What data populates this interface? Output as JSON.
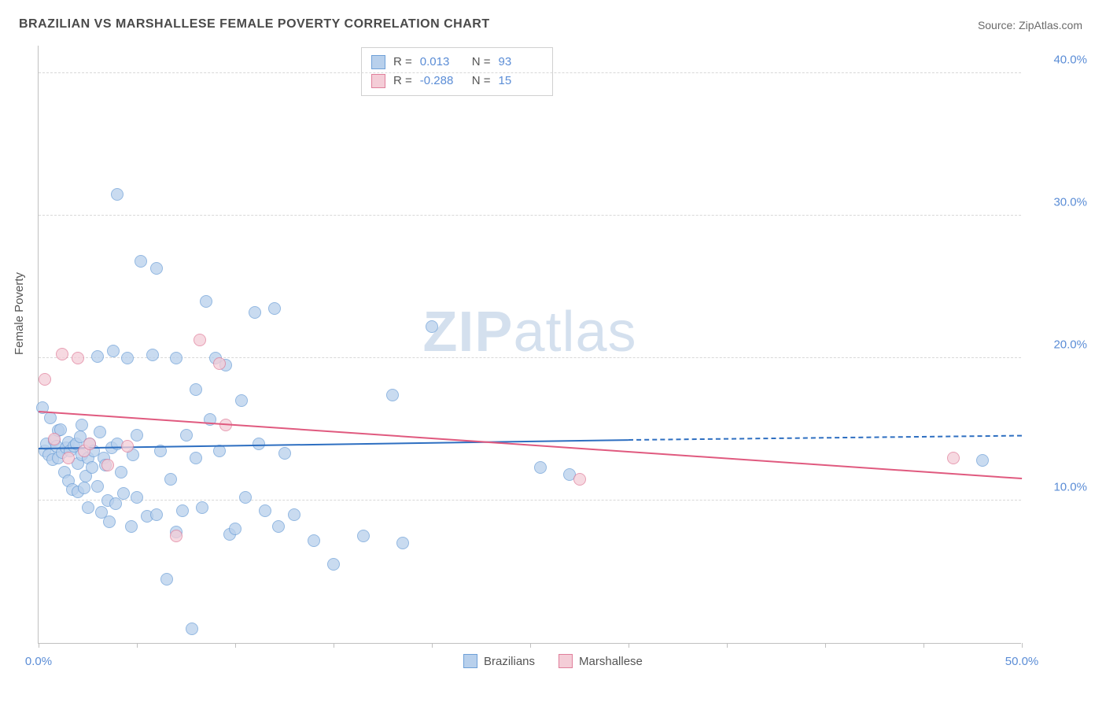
{
  "title": "BRAZILIAN VS MARSHALLESE FEMALE POVERTY CORRELATION CHART",
  "source_label": "Source: ZipAtlas.com",
  "y_axis_label": "Female Poverty",
  "watermark": {
    "zip": "ZIP",
    "atlas": "atlas"
  },
  "chart": {
    "type": "scatter",
    "xlim": [
      0,
      50
    ],
    "ylim": [
      0,
      42
    ],
    "y_ticks": [
      10,
      20,
      30,
      40
    ],
    "y_tick_labels": [
      "10.0%",
      "20.0%",
      "30.0%",
      "40.0%"
    ],
    "x_ticks": [
      0,
      5,
      10,
      15,
      20,
      25,
      30,
      35,
      40,
      45,
      50
    ],
    "x_tick_labels": {
      "0": "0.0%",
      "50": "50.0%"
    },
    "grid_color": "#d8d8d8",
    "axis_color": "#c0c0c0",
    "background_color": "#ffffff",
    "label_color": "#5b8dd6",
    "point_radius": 8,
    "series": [
      {
        "name": "Brazilians",
        "fill": "#b8d0ec",
        "stroke": "#6fa1d8",
        "trend_color": "#2e6fc1",
        "R": "0.013",
        "N": "93",
        "trend": {
          "x0": 0,
          "y0": 13.6,
          "x1": 30,
          "y1": 14.2,
          "x2": 50,
          "y2": 14.5
        },
        "points": [
          [
            0.2,
            16.5
          ],
          [
            0.3,
            13.5
          ],
          [
            0.4,
            14.0
          ],
          [
            0.5,
            13.2
          ],
          [
            0.6,
            15.8
          ],
          [
            0.7,
            12.9
          ],
          [
            0.8,
            14.2
          ],
          [
            0.9,
            13.8
          ],
          [
            1.0,
            13.0
          ],
          [
            1.0,
            14.9
          ],
          [
            1.1,
            15.0
          ],
          [
            1.2,
            13.4
          ],
          [
            1.3,
            12.0
          ],
          [
            1.4,
            13.7
          ],
          [
            1.5,
            14.1
          ],
          [
            1.5,
            11.4
          ],
          [
            1.6,
            13.5
          ],
          [
            1.7,
            10.8
          ],
          [
            1.8,
            13.8
          ],
          [
            1.9,
            14.0
          ],
          [
            2.0,
            12.6
          ],
          [
            2.0,
            10.6
          ],
          [
            2.1,
            14.5
          ],
          [
            2.2,
            13.2
          ],
          [
            2.2,
            15.3
          ],
          [
            2.3,
            10.9
          ],
          [
            2.4,
            11.7
          ],
          [
            2.5,
            13.0
          ],
          [
            2.5,
            9.5
          ],
          [
            2.6,
            14.0
          ],
          [
            2.7,
            12.3
          ],
          [
            2.8,
            13.5
          ],
          [
            3.0,
            20.1
          ],
          [
            3.0,
            11.0
          ],
          [
            3.1,
            14.8
          ],
          [
            3.2,
            9.2
          ],
          [
            3.3,
            13.0
          ],
          [
            3.4,
            12.5
          ],
          [
            3.5,
            10.0
          ],
          [
            3.6,
            8.5
          ],
          [
            3.7,
            13.7
          ],
          [
            3.8,
            20.5
          ],
          [
            3.9,
            9.8
          ],
          [
            4.0,
            14.0
          ],
          [
            4.0,
            31.5
          ],
          [
            4.2,
            12.0
          ],
          [
            4.3,
            10.5
          ],
          [
            4.5,
            20.0
          ],
          [
            4.7,
            8.2
          ],
          [
            4.8,
            13.2
          ],
          [
            5.0,
            14.6
          ],
          [
            5.0,
            10.2
          ],
          [
            5.2,
            26.8
          ],
          [
            5.5,
            8.9
          ],
          [
            5.8,
            20.2
          ],
          [
            6.0,
            26.3
          ],
          [
            6.0,
            9.0
          ],
          [
            6.2,
            13.5
          ],
          [
            6.5,
            4.5
          ],
          [
            6.7,
            11.5
          ],
          [
            7.0,
            20.0
          ],
          [
            7.0,
            7.8
          ],
          [
            7.3,
            9.3
          ],
          [
            7.5,
            14.6
          ],
          [
            7.8,
            1.0
          ],
          [
            8.0,
            13.0
          ],
          [
            8.0,
            17.8
          ],
          [
            8.3,
            9.5
          ],
          [
            8.5,
            24.0
          ],
          [
            8.7,
            15.7
          ],
          [
            9.0,
            20.0
          ],
          [
            9.2,
            13.5
          ],
          [
            9.5,
            19.5
          ],
          [
            9.7,
            7.6
          ],
          [
            10.0,
            8.0
          ],
          [
            10.3,
            17.0
          ],
          [
            10.5,
            10.2
          ],
          [
            11.0,
            23.2
          ],
          [
            11.2,
            14.0
          ],
          [
            11.5,
            9.3
          ],
          [
            12.0,
            23.5
          ],
          [
            12.2,
            8.2
          ],
          [
            12.5,
            13.3
          ],
          [
            13.0,
            9.0
          ],
          [
            14.0,
            7.2
          ],
          [
            15.0,
            5.5
          ],
          [
            16.5,
            7.5
          ],
          [
            18.0,
            17.4
          ],
          [
            18.5,
            7.0
          ],
          [
            20.0,
            22.2
          ],
          [
            25.5,
            12.3
          ],
          [
            27.0,
            11.8
          ],
          [
            48.0,
            12.8
          ]
        ]
      },
      {
        "name": "Marshallese",
        "fill": "#f4cdd7",
        "stroke": "#e07f9b",
        "trend_color": "#e05a7f",
        "R": "-0.288",
        "N": "15",
        "trend": {
          "x0": 0,
          "y0": 16.2,
          "x1": 50,
          "y1": 11.5
        },
        "points": [
          [
            0.3,
            18.5
          ],
          [
            0.8,
            14.3
          ],
          [
            1.2,
            20.3
          ],
          [
            1.5,
            13.0
          ],
          [
            2.0,
            20.0
          ],
          [
            2.3,
            13.5
          ],
          [
            2.6,
            14.0
          ],
          [
            3.5,
            12.5
          ],
          [
            4.5,
            13.8
          ],
          [
            7.0,
            7.5
          ],
          [
            8.2,
            21.3
          ],
          [
            9.2,
            19.6
          ],
          [
            9.5,
            15.3
          ],
          [
            27.5,
            11.5
          ],
          [
            46.5,
            13.0
          ]
        ]
      }
    ],
    "legend_bottom": [
      {
        "label": "Brazilians",
        "fill": "#b8d0ec",
        "stroke": "#6fa1d8"
      },
      {
        "label": "Marshallese",
        "fill": "#f4cdd7",
        "stroke": "#e07f9b"
      }
    ]
  }
}
